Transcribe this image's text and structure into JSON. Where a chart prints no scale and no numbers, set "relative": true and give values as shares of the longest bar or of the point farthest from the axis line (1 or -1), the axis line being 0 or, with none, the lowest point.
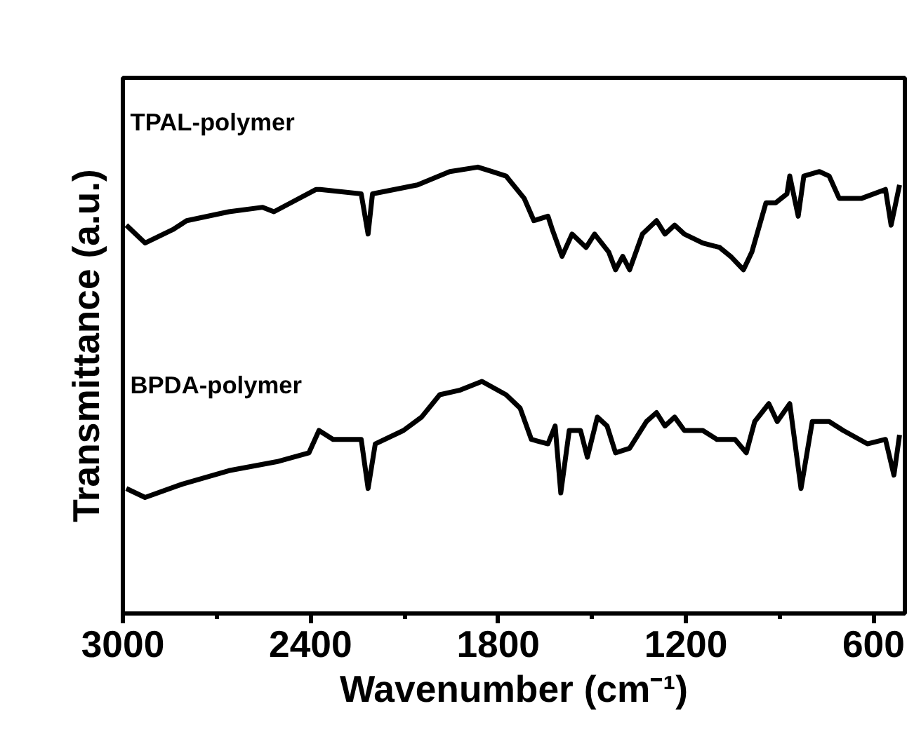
{
  "chart_data": {
    "type": "line",
    "relative": true,
    "xlabel": "Wavenumber (cm⁻¹)",
    "ylabel": "Transmittance (a.u.)",
    "xlim": [
      3000,
      500
    ],
    "xticks": [
      3000,
      {
        "value": 2700,
        "label": null
      },
      2400,
      {
        "value": 2100,
        "label": null
      },
      1800,
      {
        "value": 1500,
        "label": null
      },
      1200,
      {
        "value": 900,
        "label": null
      },
      600
    ],
    "grid": false,
    "legend": false,
    "marker": "none",
    "line_style": "solid",
    "series": [
      {
        "name": "TPAL-polymer",
        "color": "#000000",
        "x": [
          2989,
          2929,
          2840,
          2796,
          2661,
          2553,
          2517,
          2463,
          2382,
          2369,
          2238,
          2216,
          2202,
          2058,
          1955,
          1865,
          1820,
          1775,
          1717,
          1686,
          1641,
          1627,
          1596,
          1564,
          1519,
          1492,
          1447,
          1425,
          1402,
          1380,
          1339,
          1294,
          1267,
          1236,
          1205,
          1146,
          1092,
          1057,
          1016,
          989,
          944,
          913,
          877,
          868,
          841,
          823,
          773,
          742,
          710,
          638,
          562,
          544,
          517
        ],
        "values": [
          0.87,
          0.83,
          0.86,
          0.88,
          0.9,
          0.91,
          0.9,
          0.92,
          0.95,
          0.95,
          0.94,
          0.85,
          0.94,
          0.96,
          0.99,
          1.0,
          0.99,
          0.98,
          0.93,
          0.88,
          0.89,
          0.86,
          0.8,
          0.85,
          0.82,
          0.85,
          0.81,
          0.77,
          0.8,
          0.77,
          0.85,
          0.88,
          0.85,
          0.87,
          0.85,
          0.83,
          0.82,
          0.8,
          0.77,
          0.81,
          0.92,
          0.92,
          0.94,
          0.98,
          0.89,
          0.98,
          0.99,
          0.98,
          0.93,
          0.93,
          0.95,
          0.87,
          0.96
        ]
      },
      {
        "name": "BPDA-polymer",
        "color": "#000000",
        "x": [
          2989,
          2929,
          2809,
          2661,
          2508,
          2405,
          2373,
          2328,
          2238,
          2216,
          2193,
          2103,
          2045,
          1987,
          1924,
          1852,
          1775,
          1730,
          1694,
          1641,
          1618,
          1600,
          1573,
          1537,
          1515,
          1483,
          1452,
          1425,
          1380,
          1326,
          1294,
          1267,
          1236,
          1205,
          1146,
          1101,
          1043,
          1007,
          980,
          935,
          908,
          868,
          832,
          796,
          742,
          697,
          620,
          562,
          535,
          517
        ],
        "values": [
          0.28,
          0.26,
          0.29,
          0.32,
          0.34,
          0.36,
          0.41,
          0.39,
          0.39,
          0.28,
          0.38,
          0.41,
          0.44,
          0.49,
          0.5,
          0.52,
          0.49,
          0.46,
          0.39,
          0.38,
          0.42,
          0.27,
          0.41,
          0.41,
          0.35,
          0.44,
          0.42,
          0.36,
          0.37,
          0.43,
          0.45,
          0.42,
          0.44,
          0.41,
          0.41,
          0.39,
          0.39,
          0.36,
          0.43,
          0.47,
          0.43,
          0.47,
          0.28,
          0.43,
          0.43,
          0.41,
          0.38,
          0.39,
          0.31,
          0.4
        ]
      }
    ]
  }
}
